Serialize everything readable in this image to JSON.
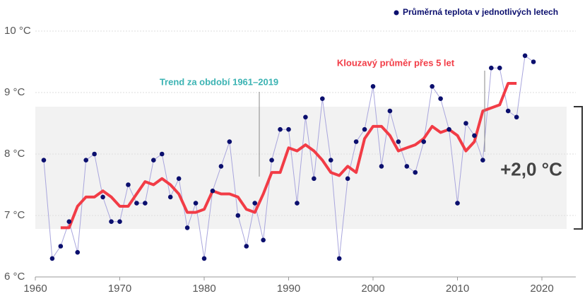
{
  "chart_data": {
    "type": "line",
    "x": [
      1961,
      1962,
      1963,
      1964,
      1965,
      1966,
      1967,
      1968,
      1969,
      1970,
      1971,
      1972,
      1973,
      1974,
      1975,
      1976,
      1977,
      1978,
      1979,
      1980,
      1981,
      1982,
      1983,
      1984,
      1985,
      1986,
      1987,
      1988,
      1989,
      1990,
      1991,
      1992,
      1993,
      1994,
      1995,
      1996,
      1997,
      1998,
      1999,
      2000,
      2001,
      2002,
      2003,
      2004,
      2005,
      2006,
      2007,
      2008,
      2009,
      2010,
      2011,
      2012,
      2013,
      2014,
      2015,
      2016,
      2017,
      2018,
      2019
    ],
    "series": [
      {
        "name": "Průměrná teplota v jednotlivých letech",
        "color": "#0b0f6e",
        "values": [
          7.9,
          6.3,
          6.5,
          6.9,
          6.4,
          7.9,
          8.0,
          7.3,
          6.9,
          6.9,
          7.5,
          7.2,
          7.2,
          7.9,
          8.0,
          7.3,
          7.6,
          6.8,
          7.2,
          6.3,
          7.4,
          7.8,
          8.2,
          7.0,
          6.5,
          7.2,
          6.6,
          7.9,
          8.4,
          8.4,
          7.2,
          8.6,
          7.6,
          8.9,
          7.9,
          6.3,
          7.6,
          8.2,
          8.4,
          9.1,
          7.8,
          8.7,
          8.2,
          7.8,
          7.7,
          8.2,
          9.1,
          8.9,
          8.4,
          7.2,
          8.5,
          8.3,
          7.9,
          9.4,
          9.4,
          8.7,
          8.6,
          9.6,
          9.5
        ]
      },
      {
        "name": "Klouzavý průměr přes 5 let",
        "color": "#f23c46",
        "values": [
          null,
          null,
          6.8,
          6.8,
          7.15,
          7.3,
          7.3,
          7.4,
          7.3,
          7.15,
          7.15,
          7.35,
          7.55,
          7.5,
          7.6,
          7.5,
          7.35,
          7.05,
          7.05,
          7.1,
          7.4,
          7.35,
          7.35,
          7.3,
          7.1,
          7.05,
          7.35,
          7.7,
          7.7,
          8.1,
          8.05,
          8.15,
          8.05,
          7.9,
          7.7,
          7.65,
          7.8,
          7.7,
          8.25,
          8.45,
          8.45,
          8.3,
          8.05,
          8.1,
          8.15,
          8.25,
          8.45,
          8.35,
          8.4,
          8.3,
          8.05,
          8.2,
          8.7,
          8.75,
          8.8,
          9.15,
          9.15,
          null,
          null
        ]
      },
      {
        "name": "Trend za období 1961–2019",
        "color": "#94d4d4",
        "values": [
          6.78,
          null,
          null,
          null,
          null,
          null,
          null,
          null,
          null,
          null,
          null,
          null,
          null,
          null,
          null,
          null,
          null,
          null,
          null,
          null,
          null,
          null,
          null,
          null,
          null,
          null,
          null,
          null,
          null,
          null,
          null,
          null,
          null,
          null,
          null,
          null,
          null,
          null,
          null,
          null,
          null,
          null,
          null,
          null,
          null,
          null,
          null,
          null,
          null,
          null,
          null,
          null,
          null,
          null,
          null,
          null,
          null,
          null,
          8.77
        ]
      }
    ],
    "band": {
      "range": [
        6.78,
        8.77
      ],
      "label": "+2,0 °C"
    },
    "xlim": [
      1960,
      2025
    ],
    "xticks": [
      1960,
      1970,
      1980,
      1990,
      2000,
      2010,
      2020
    ],
    "ylim": [
      6,
      10
    ],
    "yticks": [
      {
        "value": 6,
        "label": "6 °C"
      },
      {
        "value": 7,
        "label": "7 °C"
      },
      {
        "value": 8,
        "label": "8 °C"
      },
      {
        "value": 9,
        "label": "9 °C"
      },
      {
        "value": 10,
        "label": "10 °C"
      }
    ],
    "grid": true
  }
}
